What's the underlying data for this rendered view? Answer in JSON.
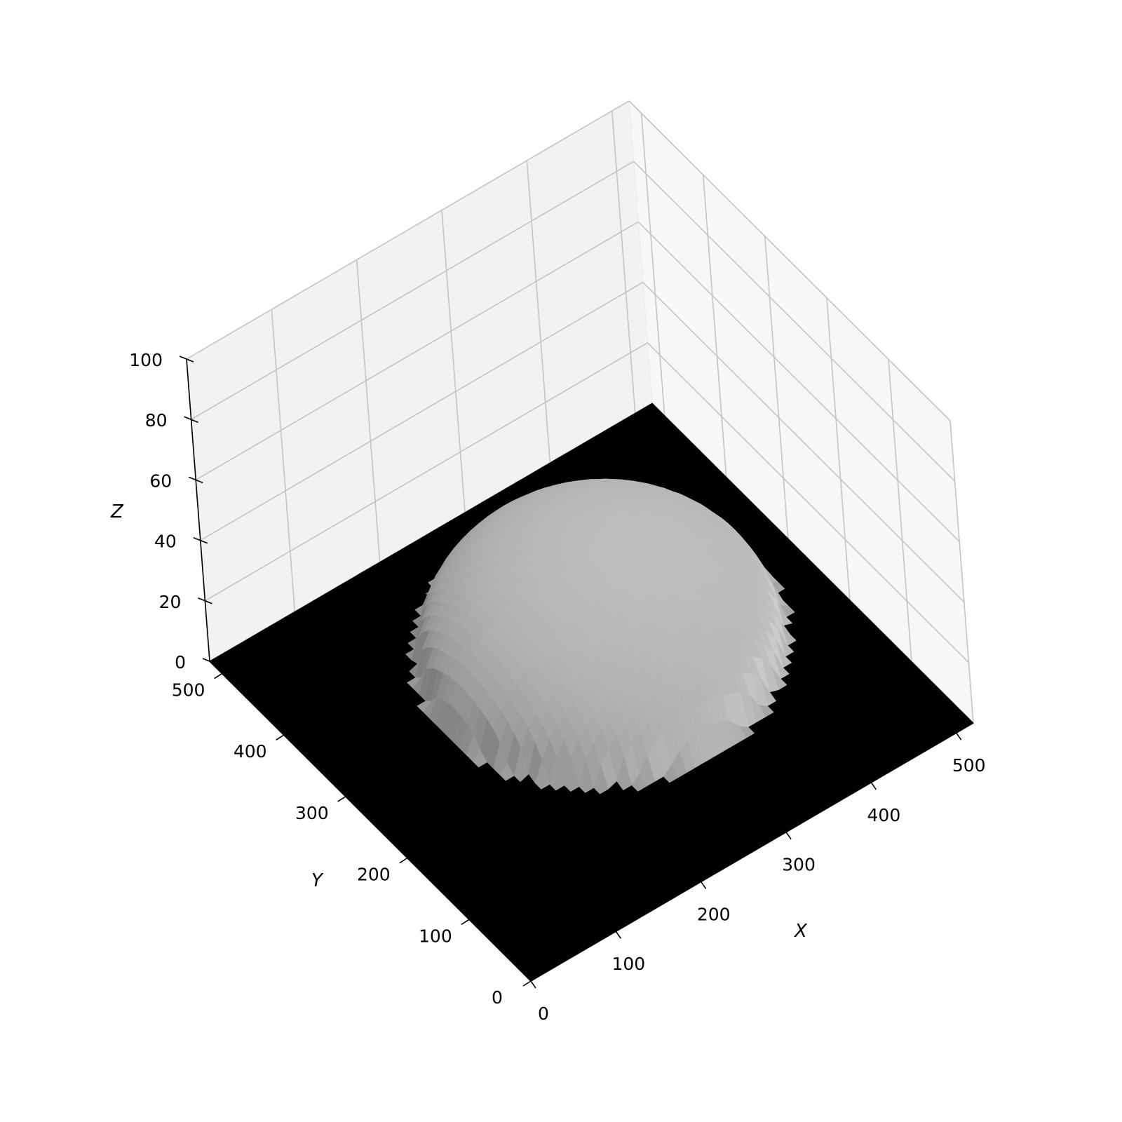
{
  "chart_data": {
    "type": "surface3d",
    "title": "",
    "xlabel": "X",
    "ylabel": "Y",
    "zlabel": "Z",
    "xlim": [
      0,
      520
    ],
    "ylim": [
      0,
      520
    ],
    "zlim": [
      0,
      100
    ],
    "xticks": [
      0,
      100,
      200,
      300,
      400,
      500
    ],
    "yticks": [
      0,
      100,
      200,
      300,
      400,
      500
    ],
    "zticks": [
      0,
      20,
      40,
      60,
      80,
      100
    ],
    "xtick_labels": [
      "0",
      "100",
      "200",
      "300",
      "400",
      "500"
    ],
    "ytick_labels": [
      "0",
      "100",
      "200",
      "300",
      "400",
      "500"
    ],
    "ztick_labels": [
      "0",
      "20",
      "40",
      "60",
      "80",
      "100"
    ],
    "grid": true,
    "colormap": "gray",
    "floor_color": "#000000",
    "surface": {
      "shape": "dome",
      "center_x": 300,
      "center_y": 300,
      "radius": 175,
      "peak_z": 32,
      "base_z": 0,
      "description_values": "height field over 0-520 x 0-520 grid, zero outside dome"
    }
  }
}
